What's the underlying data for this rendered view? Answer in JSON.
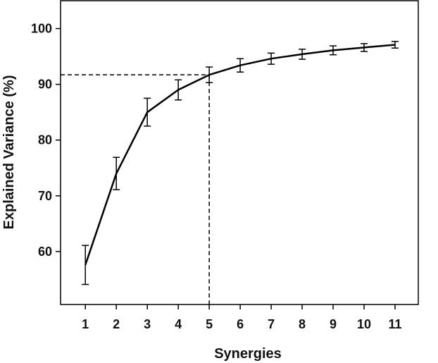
{
  "chart_data": {
    "type": "line",
    "title": "",
    "xlabel": "Synergies",
    "ylabel": "Explained Variance (%)",
    "x": [
      1,
      2,
      3,
      4,
      5,
      6,
      7,
      8,
      9,
      10,
      11
    ],
    "x_tick_labels": [
      "1",
      "2",
      "3",
      "4",
      "5",
      "6",
      "7",
      "8",
      "9",
      "10",
      "11"
    ],
    "y_ticks": [
      60,
      70,
      80,
      90,
      100
    ],
    "y_tick_labels": [
      "60",
      "70",
      "80",
      "90",
      "100"
    ],
    "xlim": [
      0.2,
      11.75
    ],
    "ylim": [
      50.5,
      105
    ],
    "grid": false,
    "series": [
      {
        "values": [
          57.6,
          74.0,
          85.0,
          89.0,
          91.7,
          93.4,
          94.6,
          95.4,
          96.1,
          96.6,
          97.1
        ],
        "error": [
          3.5,
          2.9,
          2.5,
          1.8,
          1.4,
          1.2,
          1.0,
          0.9,
          0.8,
          0.7,
          0.6
        ]
      }
    ],
    "reference_lines": {
      "x": 5,
      "y": 91.7,
      "style": "dashed"
    }
  }
}
